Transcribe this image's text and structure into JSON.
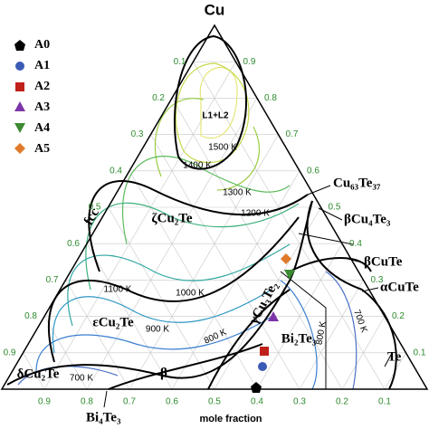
{
  "title": "Cu",
  "legend": [
    "A0",
    "A1",
    "A2",
    "A3",
    "A4",
    "A5"
  ],
  "left_ticks": [
    "0.1",
    "0.2",
    "0.3",
    "0.4",
    "0.5",
    "0.6",
    "0.7",
    "0.8",
    "0.9"
  ],
  "right_ticks": [
    "0.9",
    "0.8",
    "0.7",
    "0.6",
    "0.5",
    "0.4",
    "0.3",
    "0.2",
    "0.1"
  ],
  "bottom_ticks": [
    "0.9",
    "0.8",
    "0.7",
    "0.6",
    "0.5",
    "0.4",
    "0.3",
    "0.2",
    "0.1"
  ],
  "axis_label": "mole fraction",
  "phases": [
    "L1+L2",
    "ζCu₂Te",
    "εCu₂Te",
    "δCu₂Te",
    "γCu₃Te₂",
    "Bi₂Te₃",
    "β",
    "fcc",
    "Cu₆₃Te₃₇",
    "βCu₄Te₃",
    "βCuTe",
    "αCuTe",
    "Te",
    "Bi₄Te₃"
  ],
  "isotherms": [
    "1500 K",
    "1400 K",
    "1300 K",
    "1200 K",
    "1100 K",
    "1000 K",
    "900 K",
    "800 K",
    "800 K",
    "700 K",
    "700 K"
  ]
}
